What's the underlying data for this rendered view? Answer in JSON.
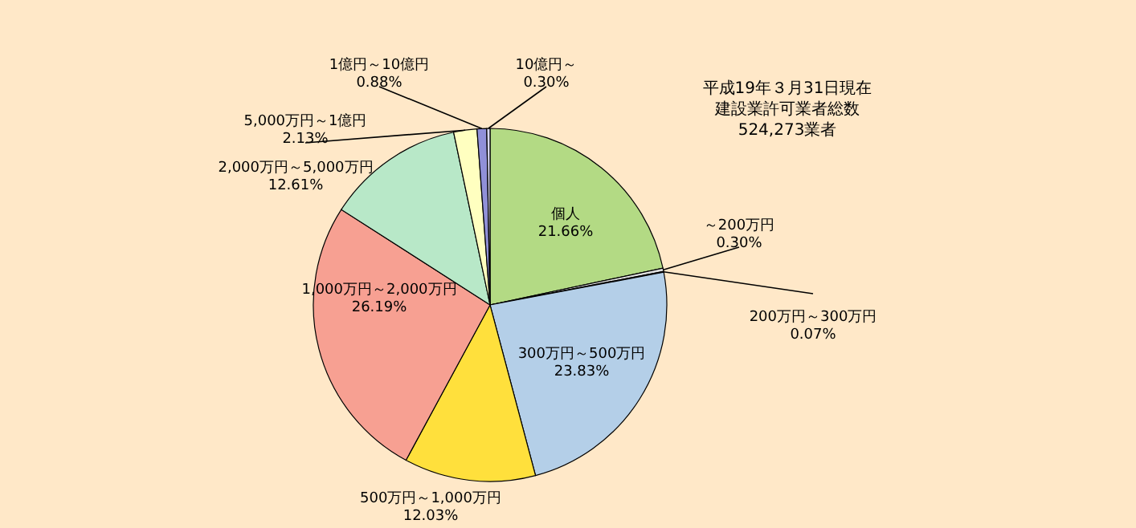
{
  "chart_data": {
    "type": "pie",
    "categories": [
      "個人",
      "～200万円",
      "200万円～300万円",
      "300万円～500万円",
      "500万円～1,000万円",
      "1,000万円～2,000万円",
      "2,000万円～5,000万円",
      "5,000万円～1億円",
      "1億円～10億円",
      "10億円～"
    ],
    "values": [
      21.66,
      0.3,
      0.07,
      23.83,
      12.03,
      26.19,
      12.61,
      2.13,
      0.88,
      0.3
    ],
    "value_labels": [
      "21.66%",
      "0.30%",
      "0.07%",
      "23.83%",
      "12.03%",
      "26.19%",
      "12.61%",
      "2.13%",
      "0.88%",
      "0.30%"
    ],
    "colors": [
      "#b3da84",
      "#e0e0e0",
      "#606060",
      "#b4cfe8",
      "#ffe03c",
      "#f7a092",
      "#b8e8c8",
      "#ffffc0",
      "#9090d8",
      "#d8d8f0"
    ],
    "annotations": [
      "平成19年３月31日現在",
      "建設業許可業者総数",
      "524,273業者"
    ]
  }
}
